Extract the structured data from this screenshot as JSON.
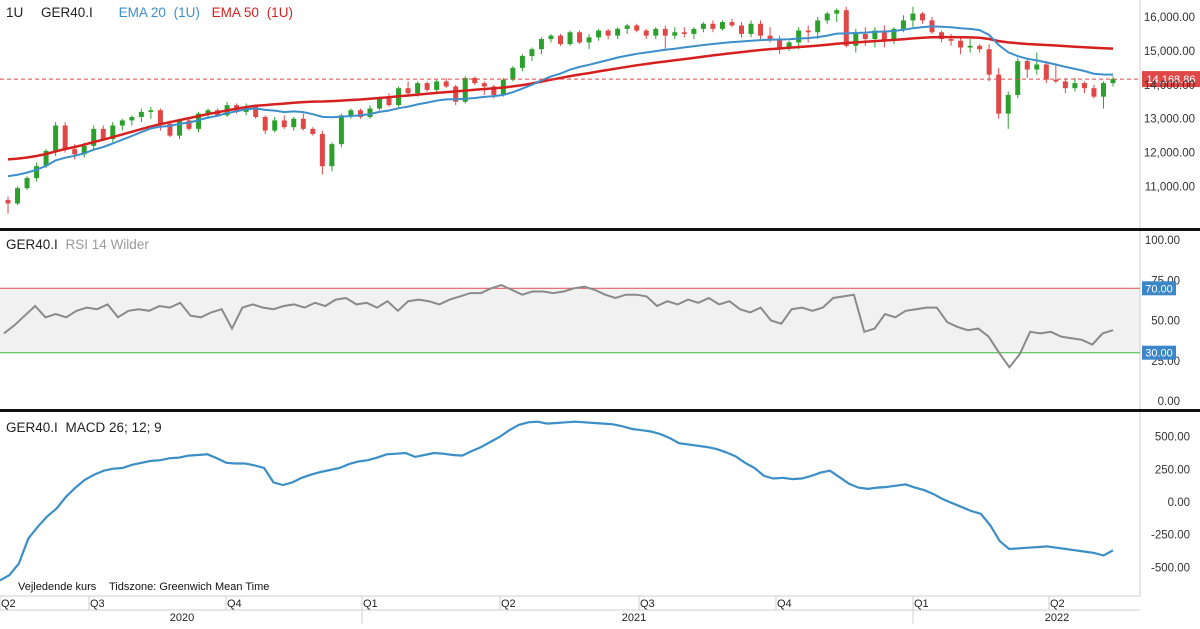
{
  "header": {
    "interval": "1U",
    "symbol": "GER40.I",
    "ema20_label": "EMA 20",
    "ema20_param": "(1U)",
    "ema50_label": "EMA 50",
    "ema50_param": "(1U)"
  },
  "rsi_legend": {
    "symbol": "GER40.I",
    "study": "RSI 14 Wilder"
  },
  "macd_legend": {
    "symbol": "GER40.I",
    "study": "MACD 26; 12; 9"
  },
  "footer": {
    "price_type": "Vejledende kurs",
    "timezone": "Tidszone: Greenwich Mean Time"
  },
  "colors": {
    "up": "#2ca02c",
    "down": "#e04848",
    "ema20": "#3d8fcc",
    "ema50": "#d62020",
    "rsi_line": "#8a8a8a",
    "rsi_upper": "#e24a4a",
    "rsi_lower": "#3cb83c",
    "macd": "#3b8fc6",
    "last_price": "#e04848",
    "divider": "#111111"
  },
  "chart_data": [
    {
      "type": "candlestick",
      "title": "GER40.I",
      "interval": "1U",
      "ylim": [
        10200,
        16600
      ],
      "yticks": [
        "11,000.00",
        "12,000.00",
        "13,000.00",
        "14,000.00",
        "15,000.00",
        "16,000.00"
      ],
      "last_price_label": "14,168.86",
      "last_price": 14168.86,
      "series_labels": [
        "EMA 20 (1U)",
        "EMA 50 (1U)"
      ],
      "candles": [
        [
          10600,
          10700,
          10200,
          10500
        ],
        [
          10500,
          11000,
          10450,
          10950
        ],
        [
          10950,
          11300,
          10900,
          11250
        ],
        [
          11250,
          11700,
          11150,
          11600
        ],
        [
          11600,
          12100,
          11550,
          12050
        ],
        [
          12050,
          12900,
          11900,
          12800
        ],
        [
          12800,
          12900,
          12000,
          12100
        ],
        [
          12100,
          12250,
          11800,
          11950
        ],
        [
          11950,
          12300,
          11850,
          12200
        ],
        [
          12200,
          12800,
          12100,
          12700
        ],
        [
          12700,
          12800,
          12350,
          12400
        ],
        [
          12400,
          12900,
          12300,
          12800
        ],
        [
          12800,
          13000,
          12650,
          12950
        ],
        [
          12950,
          13100,
          12800,
          13050
        ],
        [
          13050,
          13300,
          12900,
          13200
        ],
        [
          13200,
          13350,
          13000,
          13250
        ],
        [
          13250,
          13300,
          12650,
          12850
        ],
        [
          12850,
          12950,
          12450,
          12500
        ],
        [
          12500,
          13000,
          12400,
          12950
        ],
        [
          12950,
          13050,
          12650,
          12700
        ],
        [
          12700,
          13200,
          12600,
          13150
        ],
        [
          13150,
          13300,
          13000,
          13250
        ],
        [
          13250,
          13300,
          13050,
          13100
        ],
        [
          13100,
          13500,
          13050,
          13400
        ],
        [
          13400,
          13450,
          13150,
          13200
        ],
        [
          13200,
          13450,
          13100,
          13350
        ],
        [
          13350,
          13400,
          13000,
          13050
        ],
        [
          13050,
          13100,
          12550,
          12650
        ],
        [
          12650,
          13050,
          12600,
          12950
        ],
        [
          12950,
          13100,
          12700,
          12750
        ],
        [
          12750,
          13050,
          12650,
          13000
        ],
        [
          13000,
          13150,
          12650,
          12700
        ],
        [
          12700,
          12750,
          12500,
          12550
        ],
        [
          12550,
          12650,
          11350,
          11600
        ],
        [
          11600,
          12300,
          11450,
          12250
        ],
        [
          12250,
          13150,
          12150,
          13100
        ],
        [
          13100,
          13300,
          13000,
          13250
        ],
        [
          13250,
          13300,
          13000,
          13050
        ],
        [
          13050,
          13400,
          13000,
          13300
        ],
        [
          13300,
          13650,
          13250,
          13600
        ],
        [
          13600,
          13750,
          13350,
          13400
        ],
        [
          13400,
          13950,
          13350,
          13900
        ],
        [
          13900,
          14100,
          13700,
          13750
        ],
        [
          13750,
          14100,
          13650,
          14050
        ],
        [
          14050,
          14100,
          13800,
          13850
        ],
        [
          13850,
          14150,
          13800,
          14100
        ],
        [
          14100,
          14200,
          13900,
          13950
        ],
        [
          13950,
          14000,
          13400,
          13500
        ],
        [
          13500,
          14250,
          13450,
          14200
        ],
        [
          14200,
          14250,
          14000,
          14050
        ],
        [
          14050,
          14100,
          13700,
          13950
        ],
        [
          13950,
          14000,
          13600,
          13700
        ],
        [
          13700,
          14200,
          13650,
          14150
        ],
        [
          14150,
          14550,
          14100,
          14500
        ],
        [
          14500,
          14900,
          14400,
          14850
        ],
        [
          14850,
          15100,
          14700,
          15050
        ],
        [
          15050,
          15400,
          14900,
          15350
        ],
        [
          15350,
          15500,
          15250,
          15450
        ],
        [
          15450,
          15500,
          15150,
          15200
        ],
        [
          15200,
          15600,
          15150,
          15550
        ],
        [
          15550,
          15600,
          15200,
          15250
        ],
        [
          15250,
          15500,
          15050,
          15400
        ],
        [
          15400,
          15650,
          15300,
          15600
        ],
        [
          15600,
          15650,
          15350,
          15450
        ],
        [
          15450,
          15700,
          15350,
          15650
        ],
        [
          15650,
          15800,
          15500,
          15750
        ],
        [
          15750,
          15800,
          15550,
          15600
        ],
        [
          15600,
          15650,
          15350,
          15450
        ],
        [
          15450,
          15700,
          15350,
          15650
        ],
        [
          15650,
          15750,
          15050,
          15450
        ],
        [
          15450,
          15700,
          15350,
          15550
        ],
        [
          15550,
          15700,
          15400,
          15500
        ],
        [
          15500,
          15700,
          15350,
          15650
        ],
        [
          15650,
          15850,
          15550,
          15800
        ],
        [
          15800,
          15900,
          15550,
          15650
        ],
        [
          15650,
          15900,
          15600,
          15850
        ],
        [
          15850,
          15950,
          15700,
          15750
        ],
        [
          15750,
          15850,
          15400,
          15500
        ],
        [
          15500,
          15900,
          15400,
          15800
        ],
        [
          15800,
          15900,
          15350,
          15450
        ],
        [
          15450,
          15700,
          15250,
          15350
        ],
        [
          15350,
          15450,
          14900,
          15100
        ],
        [
          15100,
          15300,
          15000,
          15250
        ],
        [
          15250,
          15700,
          15050,
          15600
        ],
        [
          15600,
          15750,
          15250,
          15550
        ],
        [
          15550,
          16000,
          15350,
          15900
        ],
        [
          15900,
          16150,
          15800,
          16100
        ],
        [
          16100,
          16250,
          15850,
          16200
        ],
        [
          16200,
          16300,
          15100,
          15150
        ],
        [
          15150,
          15650,
          14950,
          15500
        ],
        [
          15500,
          15700,
          15150,
          15350
        ],
        [
          15350,
          15700,
          15100,
          15600
        ],
        [
          15600,
          15750,
          15100,
          15300
        ],
        [
          15300,
          15700,
          15200,
          15650
        ],
        [
          15650,
          16050,
          15550,
          15900
        ],
        [
          15900,
          16300,
          15700,
          16100
        ],
        [
          16100,
          16150,
          15800,
          15900
        ],
        [
          15900,
          16000,
          15500,
          15550
        ],
        [
          15550,
          15600,
          15250,
          15350
        ],
        [
          15350,
          15500,
          15150,
          15300
        ],
        [
          15300,
          15400,
          14900,
          15100
        ],
        [
          15100,
          15350,
          14950,
          15150
        ],
        [
          15150,
          15200,
          14950,
          15050
        ],
        [
          15050,
          15200,
          14100,
          14300
        ],
        [
          14300,
          14500,
          13000,
          13150
        ],
        [
          13150,
          13800,
          12700,
          13700
        ],
        [
          13700,
          14800,
          13600,
          14700
        ],
        [
          14700,
          14800,
          14200,
          14450
        ],
        [
          14450,
          14950,
          14300,
          14600
        ],
        [
          14600,
          14700,
          14050,
          14150
        ],
        [
          14150,
          14600,
          14050,
          14100
        ],
        [
          14100,
          14200,
          13750,
          13900
        ],
        [
          13900,
          14200,
          13800,
          14050
        ],
        [
          14050,
          14100,
          13750,
          13900
        ],
        [
          13900,
          14000,
          13600,
          13650
        ],
        [
          13650,
          14100,
          13300,
          14050
        ],
        [
          14050,
          14250,
          13950,
          14170
        ]
      ],
      "ema20": [
        11300,
        11344,
        11410,
        11496,
        11609,
        11770,
        11849,
        11906,
        11980,
        12087,
        12164,
        12269,
        12382,
        12489,
        12605,
        12713,
        12765,
        12787,
        12850,
        12884,
        12958,
        13033,
        13087,
        13165,
        13218,
        13278,
        13304,
        13260,
        13240,
        13194,
        13214,
        13195,
        13134,
        13054,
        13044,
        13062,
        13081,
        13099,
        13136,
        13200,
        13242,
        13310,
        13356,
        13422,
        13475,
        13535,
        13568,
        13575,
        13588,
        13612,
        13644,
        13666,
        13703,
        13782,
        13889,
        14001,
        14129,
        14249,
        14330,
        14446,
        14527,
        14589,
        14661,
        14733,
        14804,
        14862,
        14915,
        14954,
        14993,
        15031,
        15066,
        15103,
        15136,
        15175,
        15204,
        15233,
        15259,
        15276,
        15298,
        15318,
        15331,
        15337,
        15343,
        15367,
        15379,
        15406,
        15451,
        15511,
        15516,
        15529,
        15540,
        15561,
        15572,
        15588,
        15622,
        15670,
        15703,
        15723,
        15714,
        15695,
        15668,
        15648,
        15615,
        15468,
        15174,
        14959,
        14848,
        14768,
        14720,
        14660,
        14600,
        14528,
        14469,
        14407,
        14327,
        14305,
        14302
      ],
      "ema50": [
        11800,
        11822,
        11855,
        11900,
        11960,
        12034,
        12105,
        12166,
        12233,
        12312,
        12381,
        12457,
        12536,
        12613,
        12694,
        12772,
        12839,
        12898,
        12960,
        13017,
        13078,
        13138,
        13190,
        13245,
        13294,
        13343,
        13384,
        13402,
        13425,
        13444,
        13469,
        13490,
        13503,
        13508,
        13519,
        13535,
        13551,
        13567,
        13586,
        13611,
        13633,
        13660,
        13684,
        13710,
        13735,
        13760,
        13784,
        13805,
        13830,
        13853,
        13876,
        13895,
        13919,
        13952,
        13992,
        14039,
        14094,
        14151,
        14200,
        14257,
        14303,
        14346,
        14395,
        14440,
        14487,
        14532,
        14576,
        14614,
        14654,
        14688,
        14725,
        14759,
        14794,
        14832,
        14867,
        14903,
        14936,
        14964,
        14998,
        15027,
        15052,
        15072,
        15093,
        15114,
        15133,
        15157,
        15184,
        15213,
        15232,
        15252,
        15268,
        15289,
        15306,
        15324,
        15345,
        15370,
        15389,
        15402,
        15407,
        15407,
        15402,
        15397,
        15385,
        15351,
        15290,
        15250,
        15226,
        15204,
        15190,
        15174,
        15160,
        15141,
        15125,
        15109,
        15091,
        15080,
        15068
      ]
    },
    {
      "type": "line",
      "title": "GER40.I RSI 14 Wilder",
      "ylim": [
        0,
        100
      ],
      "yticks": [
        "0.00",
        "25.00",
        "50.00",
        "75.00",
        "100.00"
      ],
      "levels": [
        70,
        30
      ],
      "level_labels": [
        "70.00",
        "30.00"
      ],
      "values": [
        42,
        47,
        53,
        59,
        52,
        54,
        52,
        56,
        58,
        57,
        60,
        52,
        56,
        57,
        56,
        59,
        58,
        61,
        53,
        52,
        55,
        57,
        45,
        58,
        60,
        58,
        57,
        59,
        60,
        58,
        61,
        59,
        63,
        64,
        60,
        61,
        58,
        62,
        56,
        62,
        63,
        62,
        60,
        63,
        65,
        67,
        67,
        70,
        72,
        69,
        66,
        68,
        68,
        67,
        68,
        70,
        71,
        69,
        66,
        64,
        66,
        66,
        65,
        59,
        62,
        60,
        63,
        61,
        64,
        60,
        62,
        57,
        55,
        58,
        50,
        48,
        57,
        58,
        56,
        58,
        64,
        65,
        66,
        43,
        45,
        54,
        52,
        56,
        57,
        58,
        58,
        49,
        46,
        44,
        45,
        40,
        30,
        21,
        29,
        43,
        42,
        43,
        40,
        39,
        38,
        35,
        42,
        44
      ]
    },
    {
      "type": "line",
      "title": "GER40.I MACD 26; 12; 9",
      "ylim": [
        -600,
        640
      ],
      "yticks": [
        "-500.00",
        "-250.00",
        "0.00",
        "250.00",
        "500.00"
      ],
      "x_labels": [
        "Q2",
        "Q3",
        "2020",
        "Q4",
        "Q1",
        "Q2",
        "Q3",
        "2021",
        "Q4",
        "Q1",
        "Q2",
        "2022"
      ],
      "values": [
        -600,
        -560,
        -470,
        -280,
        -190,
        -110,
        -50,
        40,
        110,
        170,
        210,
        240,
        255,
        260,
        285,
        300,
        315,
        320,
        335,
        340,
        355,
        360,
        365,
        335,
        300,
        295,
        295,
        280,
        260,
        150,
        130,
        150,
        185,
        210,
        230,
        245,
        260,
        290,
        310,
        320,
        340,
        365,
        370,
        375,
        345,
        360,
        375,
        370,
        360,
        355,
        390,
        420,
        460,
        500,
        550,
        590,
        610,
        615,
        600,
        605,
        610,
        615,
        610,
        605,
        600,
        595,
        580,
        560,
        550,
        540,
        520,
        490,
        450,
        440,
        430,
        420,
        405,
        380,
        350,
        300,
        260,
        200,
        180,
        185,
        175,
        180,
        200,
        225,
        240,
        190,
        140,
        110,
        100,
        110,
        115,
        125,
        135,
        110,
        90,
        60,
        20,
        -10,
        -40,
        -70,
        -90,
        -180,
        -300,
        -360,
        -355,
        -350,
        -345,
        -340,
        -350,
        -360,
        -370,
        -380,
        -390,
        -410,
        -370
      ]
    }
  ]
}
